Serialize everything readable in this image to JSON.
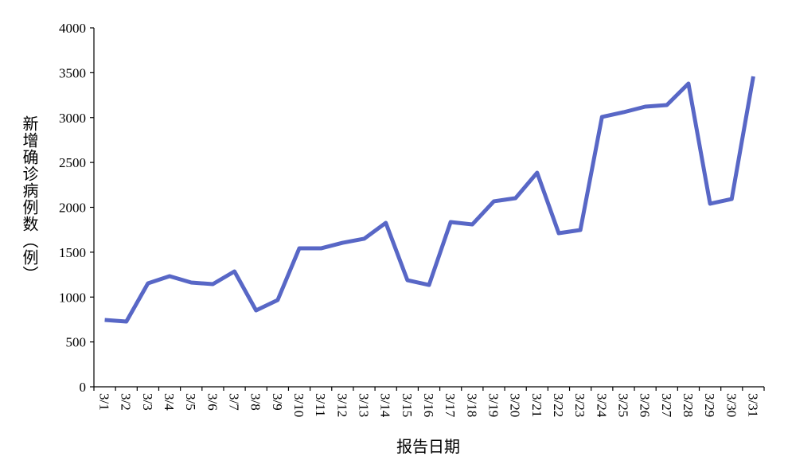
{
  "chart_data": {
    "type": "line",
    "y_label": "新增确诊病例数（例）",
    "x_label": "报告日期",
    "categories": [
      "3/1",
      "3/2",
      "3/3",
      "3/4",
      "3/5",
      "3/6",
      "3/7",
      "3/8",
      "3/9",
      "3/10",
      "3/11",
      "3/12",
      "3/13",
      "3/14",
      "3/15",
      "3/16",
      "3/17",
      "3/18",
      "3/19",
      "3/20",
      "3/21",
      "3/22",
      "3/23",
      "3/24",
      "3/25",
      "3/26",
      "3/27",
      "3/28",
      "3/29",
      "3/30",
      "3/31"
    ],
    "values": [
      745,
      727,
      1153,
      1233,
      1162,
      1144,
      1286,
      851,
      967,
      1543,
      1543,
      1605,
      1650,
      1827,
      1188,
      1135,
      1836,
      1809,
      2067,
      2102,
      2386,
      1712,
      1747,
      3007,
      3060,
      3122,
      3140,
      3379,
      2040,
      2093,
      3459
    ],
    "color": "#5867c6",
    "ylim": [
      0,
      4000
    ],
    "yticks": [
      0,
      500,
      1000,
      1500,
      2000,
      2500,
      3000,
      3500,
      4000
    ]
  }
}
